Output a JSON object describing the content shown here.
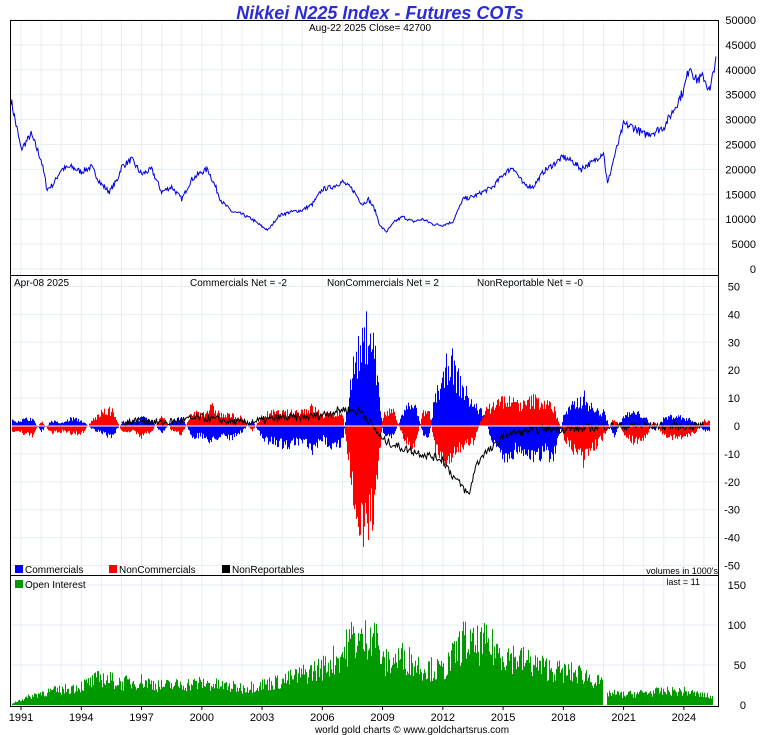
{
  "title": "Nikkei N225 Index - Futures COTs",
  "subtitle": "Aug-22  2025   Close= 42700",
  "footer": "world gold charts © www.goldchartsrus.com",
  "colors": {
    "price_line": "#0000dd",
    "commercials": "#0000ff",
    "noncommercials": "#ff0000",
    "nonreportables": "#000000",
    "open_interest": "#009900",
    "title": "#2b2bd8"
  },
  "panels": {
    "cot_date": "Apr-08  2025",
    "commercials_net": "Commercials Net = -2",
    "noncommercials_net": "NonCommercials Net = 2",
    "nonreportable_net": "NonReportable Net = -0",
    "legend": [
      "Commercials",
      "NonCommercials",
      "NonReportables"
    ],
    "oi_legend": "Open Interest",
    "volumes_note": "volumes in 1000's",
    "last_note": "last = 11"
  },
  "chart_data": [
    {
      "type": "line",
      "name": "price",
      "y_ticks": [
        "50000",
        "45000",
        "40000",
        "35000",
        "30000",
        "25000",
        "20000",
        "15000",
        "10000",
        "5000",
        "0"
      ],
      "ylim": [
        0,
        50000
      ],
      "x": [
        1990.5,
        1991,
        1991.5,
        1992,
        1992.3,
        1992.6,
        1993,
        1993.5,
        1994,
        1994.5,
        1995,
        1995.4,
        1995.8,
        1996,
        1996.5,
        1997,
        1997.5,
        1998,
        1998.5,
        1999,
        1999.5,
        2000,
        2000.3,
        2001,
        2001.5,
        2002,
        2002.5,
        2003,
        2003.3,
        2003.8,
        2004,
        2004.5,
        2005,
        2005.5,
        2006,
        2006.5,
        2007,
        2007.5,
        2008,
        2008.3,
        2008.6,
        2008.9,
        2009.2,
        2009.6,
        2010,
        2010.5,
        2011,
        2011.5,
        2012,
        2012.5,
        2013,
        2013.5,
        2014,
        2014.5,
        2015,
        2015.5,
        2016,
        2016.5,
        2017,
        2017.5,
        2018,
        2018.5,
        2018.9,
        2019,
        2019.5,
        2020,
        2020.2,
        2020.5,
        2021,
        2021.5,
        2022,
        2022.5,
        2023,
        2023.5,
        2024,
        2024.3,
        2024.6,
        2025,
        2025.3,
        2025.6
      ],
      "y": [
        34000,
        24000,
        27000,
        22000,
        16000,
        17000,
        20000,
        20500,
        19500,
        20500,
        17000,
        15500,
        18000,
        20500,
        22000,
        19000,
        20000,
        15500,
        16500,
        14000,
        18000,
        19500,
        20000,
        13500,
        11500,
        11000,
        10000,
        8500,
        7800,
        10500,
        11000,
        11500,
        11800,
        13000,
        16000,
        16500,
        17500,
        16000,
        13000,
        14000,
        12000,
        8500,
        7500,
        9500,
        10500,
        9500,
        10000,
        9000,
        8800,
        9500,
        14000,
        14500,
        15500,
        16500,
        19000,
        20500,
        17000,
        16500,
        19500,
        21000,
        22500,
        21500,
        20000,
        20500,
        21500,
        23500,
        17000,
        22000,
        29000,
        28500,
        27000,
        27500,
        28500,
        32000,
        36000,
        41000,
        38000,
        38500,
        35500,
        42700
      ]
    },
    {
      "type": "bar",
      "name": "COT net positions (volumes in 1000's)",
      "y_ticks": [
        "50",
        "40",
        "30",
        "20",
        "10",
        "0",
        "-10",
        "-20",
        "-30",
        "-40",
        "-50"
      ],
      "ylim": [
        -50,
        50
      ],
      "series": [
        {
          "name": "Commercials",
          "x": [
            1990.8,
            1991.5,
            1992,
            1992.5,
            1993,
            1993.5,
            1994,
            1994.5,
            1995,
            1995.5,
            1996,
            1996.5,
            1997,
            1997.5,
            1998,
            1998.5,
            1999,
            1999.5,
            2000,
            2000.5,
            2001,
            2001.5,
            2002,
            2002.5,
            2003,
            2003.5,
            2004,
            2004.5,
            2005,
            2005.5,
            2006,
            2006.5,
            2007,
            2007.3,
            2007.6,
            2008,
            2008.3,
            2008.6,
            2009,
            2009.5,
            2010,
            2010.5,
            2011,
            2011.3,
            2011.6,
            2012,
            2012.3,
            2012.6,
            2013,
            2013.5,
            2014,
            2014.5,
            2015,
            2015.5,
            2016,
            2016.5,
            2017,
            2017.5,
            2018,
            2018.5,
            2019,
            2019.5,
            2020,
            2020.5,
            2021,
            2021.5,
            2022,
            2022.5,
            2023,
            2023.5,
            2024,
            2024.5,
            2025
          ],
          "values": [
            2,
            3,
            -2,
            2,
            1,
            3,
            2,
            -1,
            -3,
            -4,
            1,
            2,
            3,
            2,
            -3,
            2,
            3,
            -4,
            -4,
            -6,
            -3,
            -5,
            -2,
            2,
            -5,
            -6,
            -7,
            -7,
            -6,
            -10,
            -5,
            -8,
            -6,
            12,
            25,
            30,
            39,
            28,
            -3,
            -4,
            5,
            10,
            -3,
            -4,
            12,
            16,
            27,
            20,
            14,
            8,
            5,
            -8,
            -12,
            -10,
            -9,
            -13,
            -10,
            -12,
            4,
            8,
            11,
            6,
            5,
            -4,
            4,
            5,
            4,
            -2,
            3,
            4,
            3,
            2,
            -2
          ]
        },
        {
          "name": "NonCommercials",
          "x": [
            1990.8,
            1991.5,
            1992,
            1992.5,
            1993,
            1993.5,
            1994,
            1994.5,
            1995,
            1995.5,
            1996,
            1996.5,
            1997,
            1997.5,
            1998,
            1998.5,
            1999,
            1999.5,
            2000,
            2000.5,
            2001,
            2001.5,
            2002,
            2002.5,
            2003,
            2003.5,
            2004,
            2004.5,
            2005,
            2005.5,
            2006,
            2006.5,
            2007,
            2007.3,
            2007.6,
            2008,
            2008.3,
            2008.6,
            2009,
            2009.5,
            2010,
            2010.5,
            2011,
            2011.3,
            2011.6,
            2012,
            2012.3,
            2012.6,
            2013,
            2013.5,
            2014,
            2014.5,
            2015,
            2015.5,
            2016,
            2016.5,
            2017,
            2017.5,
            2018,
            2018.5,
            2019,
            2019.5,
            2020,
            2020.5,
            2021,
            2021.5,
            2022,
            2022.5,
            2023,
            2023.5,
            2024,
            2024.5,
            2025
          ],
          "values": [
            -2,
            -4,
            2,
            -3,
            -2,
            -3,
            -3,
            2,
            5,
            6,
            -2,
            -2,
            -4,
            -2,
            4,
            -2,
            -3,
            5,
            5,
            7,
            4,
            4,
            3,
            -2,
            4,
            5,
            5,
            5,
            6,
            7,
            4,
            5,
            5,
            -14,
            -30,
            -36,
            -40,
            -30,
            4,
            6,
            -4,
            -9,
            5,
            6,
            -10,
            -14,
            -12,
            -9,
            -8,
            -6,
            5,
            8,
            10,
            9,
            8,
            10,
            9,
            7,
            -4,
            -10,
            -14,
            -8,
            -4,
            3,
            -3,
            -6,
            -5,
            2,
            -4,
            -5,
            -4,
            -3,
            2
          ]
        },
        {
          "name": "NonReportables",
          "x": [
            1996,
            1997,
            1998,
            1999,
            2000,
            2001,
            2002,
            2003,
            2004,
            2005,
            2006,
            2007,
            2008,
            2009,
            2010,
            2011,
            2012,
            2012.5,
            2013,
            2013.3,
            2013.6,
            2014,
            2014.5,
            2015,
            2016,
            2017,
            2018,
            2019,
            2020,
            2021,
            2022,
            2023,
            2024,
            2025
          ],
          "values": [
            1,
            2,
            1,
            2,
            3,
            2,
            1,
            2,
            3,
            3,
            4,
            6,
            5,
            -5,
            -8,
            -10,
            -12,
            -18,
            -22,
            -25,
            -15,
            -10,
            -8,
            -3,
            -2,
            -1,
            -1,
            -1,
            0,
            0,
            0,
            0,
            0,
            0
          ]
        }
      ]
    },
    {
      "type": "bar",
      "name": "Open Interest",
      "y_ticks": [
        "150",
        "100",
        "50",
        "0"
      ],
      "ylim": [
        0,
        160
      ],
      "x": [
        1990.5,
        1991,
        1992,
        1993,
        1994,
        1995,
        1996,
        1997,
        1998,
        1999,
        2000,
        2001,
        2002,
        2003,
        2004,
        2005,
        2006,
        2007,
        2007.5,
        2008,
        2008.5,
        2009,
        2010,
        2011,
        2012,
        2012.5,
        2013,
        2013.5,
        2014,
        2015,
        2016,
        2017,
        2018,
        2019,
        2019.9,
        2020.1,
        2021,
        2022,
        2023,
        2024,
        2025,
        2025.5
      ],
      "values": [
        2,
        8,
        18,
        22,
        28,
        40,
        32,
        35,
        28,
        30,
        32,
        28,
        25,
        30,
        35,
        45,
        55,
        75,
        100,
        90,
        115,
        60,
        70,
        55,
        50,
        70,
        95,
        85,
        90,
        75,
        65,
        55,
        48,
        45,
        30,
        18,
        15,
        18,
        20,
        20,
        14,
        11
      ]
    }
  ],
  "x_axis": {
    "ticks": [
      "1991",
      "1994",
      "1997",
      "2000",
      "2003",
      "2006",
      "2009",
      "2012",
      "2015",
      "2018",
      "2021",
      "2024"
    ],
    "range": [
      1990.5,
      2025.7
    ]
  }
}
